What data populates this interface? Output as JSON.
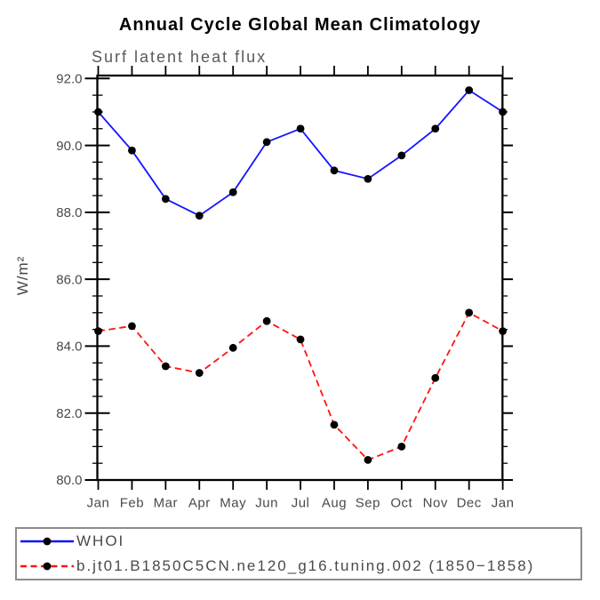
{
  "page": {
    "background": "#ffffff"
  },
  "chart_data": {
    "type": "line",
    "title": "Annual Cycle Global Mean Climatology",
    "subtitle": "Surf latent heat flux",
    "ylabel": "W/m²",
    "xlabel": "",
    "categories": [
      "Jan",
      "Feb",
      "Mar",
      "Apr",
      "May",
      "Jun",
      "Jul",
      "Aug",
      "Sep",
      "Oct",
      "Nov",
      "Dec",
      "Jan"
    ],
    "ylim": [
      80.0,
      92.0
    ],
    "ytick_labels": [
      "80.0",
      "82.0",
      "84.0",
      "86.0",
      "88.0",
      "90.0",
      "92.0"
    ],
    "ytick_major_values": [
      80,
      82,
      84,
      86,
      88,
      90,
      92
    ],
    "ytick_minor_step": 0.5,
    "grid": false,
    "legend_position": "bottom-left-box",
    "axis_color": "#000000",
    "tick_label_color": "#4a4a4a",
    "series": [
      {
        "name": "WHOI",
        "color": "#1414ff",
        "line_style": "solid",
        "marker": "filled-circle",
        "marker_color": "#000000",
        "values": [
          91.0,
          89.85,
          88.4,
          87.9,
          88.6,
          90.1,
          90.5,
          89.25,
          89.0,
          89.7,
          90.5,
          91.65,
          91.0
        ]
      },
      {
        "name": "b.jt01.B1850C5CN.ne120_g16.tuning.002 (1850−1858)",
        "color": "#ff1212",
        "line_style": "dashed",
        "marker": "filled-circle",
        "marker_color": "#000000",
        "values": [
          84.45,
          84.6,
          83.4,
          83.2,
          83.95,
          84.75,
          84.2,
          81.65,
          80.6,
          81.0,
          83.05,
          85.0,
          84.45
        ]
      }
    ]
  }
}
